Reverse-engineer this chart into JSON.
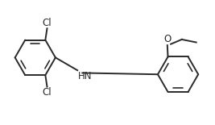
{
  "background_color": "#ffffff",
  "line_color": "#2a2a2a",
  "line_width": 1.4,
  "text_color": "#2a2a2a",
  "font_size": 8.5,
  "cl1_label": "Cl",
  "cl2_label": "Cl",
  "o_label": "O",
  "hn_label": "HN"
}
